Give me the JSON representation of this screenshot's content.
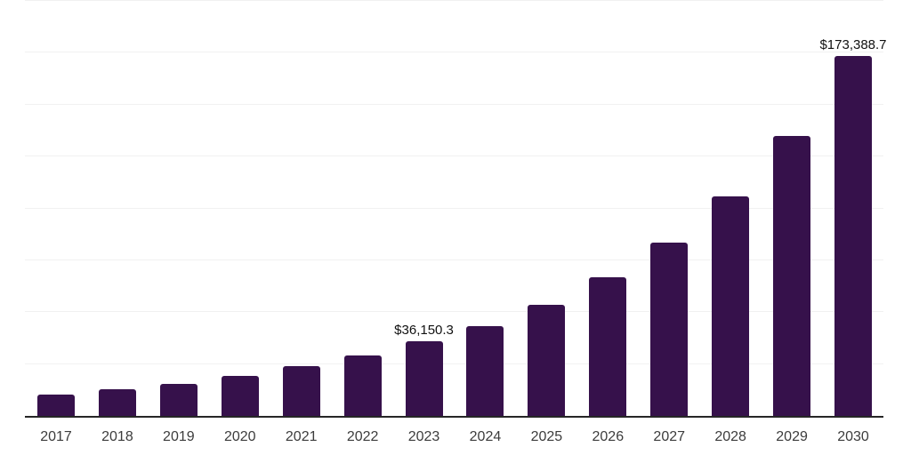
{
  "chart_data": {
    "type": "bar",
    "title": "",
    "xlabel": "",
    "ylabel": "",
    "categories": [
      "2017",
      "2018",
      "2019",
      "2020",
      "2021",
      "2022",
      "2023",
      "2024",
      "2025",
      "2026",
      "2027",
      "2028",
      "2029",
      "2030"
    ],
    "values": [
      10150,
      12700,
      15300,
      19300,
      23900,
      29100,
      36150.3,
      43400,
      53700,
      66700,
      83600,
      105800,
      134800,
      173388.7
    ],
    "value_labels": [
      "",
      "",
      "",
      "",
      "",
      "",
      "$36,150.3",
      "",
      "",
      "",
      "",
      "",
      "",
      "$173,388.7"
    ],
    "ylim": [
      0,
      200000
    ],
    "gridline_interval": 25000,
    "grid": true,
    "legend_position": "none",
    "y_axis_labels_visible": false
  },
  "colors": {
    "background": "#FFFFFF",
    "bar": "#36114B",
    "gridline": "#F1F1F1",
    "axis": "#262626",
    "tick_label": "#3C3C3C",
    "value_label": "#111111"
  }
}
